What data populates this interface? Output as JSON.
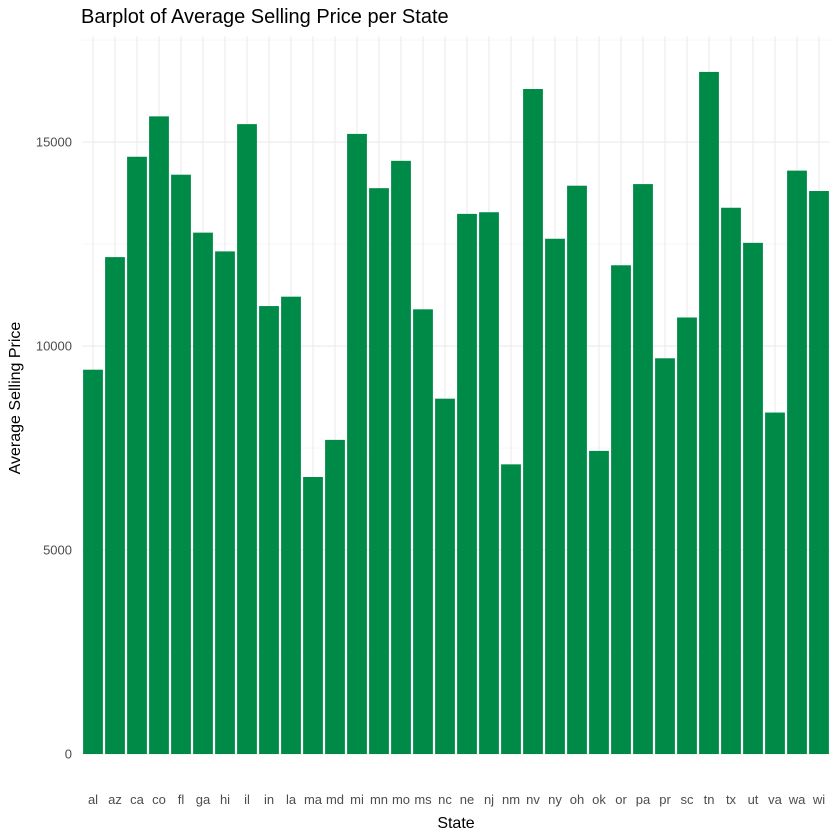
{
  "chart_data": {
    "type": "bar",
    "title": "Barplot of Average Selling Price per State",
    "xlabel": "State",
    "ylabel": "Average Selling Price",
    "categories": [
      "al",
      "az",
      "ca",
      "co",
      "fl",
      "ga",
      "hi",
      "il",
      "in",
      "la",
      "ma",
      "md",
      "mi",
      "mn",
      "mo",
      "ms",
      "nc",
      "ne",
      "nj",
      "nm",
      "nv",
      "ny",
      "oh",
      "ok",
      "or",
      "pa",
      "pr",
      "sc",
      "tn",
      "tx",
      "ut",
      "va",
      "wa",
      "wi"
    ],
    "values": [
      9420,
      12180,
      14640,
      15630,
      14200,
      12780,
      12320,
      15440,
      10980,
      11210,
      6790,
      7700,
      15200,
      13870,
      14540,
      10900,
      8710,
      13240,
      13280,
      7100,
      16300,
      12630,
      13930,
      7430,
      11980,
      13970,
      9700,
      10700,
      16720,
      13390,
      12530,
      8370,
      14300,
      13800
    ],
    "ylim": [
      0,
      17600
    ],
    "yticks": [
      0,
      5000,
      10000,
      15000
    ],
    "grid": true,
    "bar_color": "#008a47"
  }
}
